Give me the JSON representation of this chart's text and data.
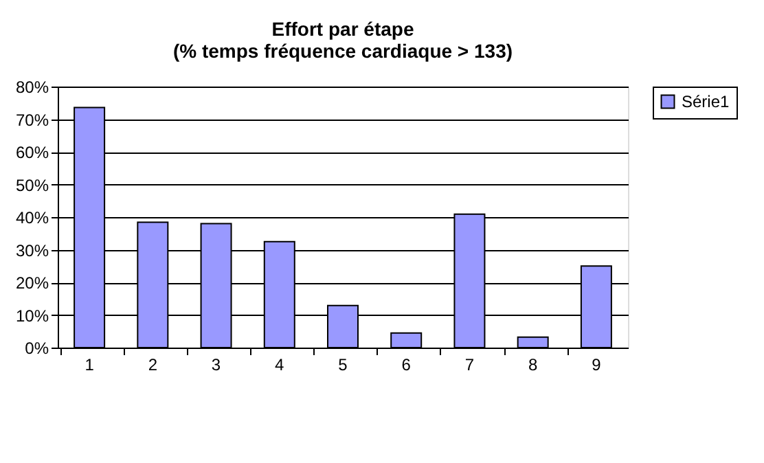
{
  "chart_data": {
    "type": "bar",
    "title": "Effort par étape\n(% temps fréquence cardiaque > 133)",
    "categories": [
      "1",
      "2",
      "3",
      "4",
      "5",
      "6",
      "7",
      "8",
      "9"
    ],
    "series": [
      {
        "name": "Série1",
        "color": "#9999ff",
        "values": [
          0.736,
          0.384,
          0.38,
          0.325,
          0.129,
          0.045,
          0.409,
          0.032,
          0.25
        ]
      }
    ],
    "ylim": [
      0,
      0.8
    ],
    "yticks": [
      {
        "value": 0,
        "label": "0%"
      },
      {
        "value": 0.1,
        "label": "10%"
      },
      {
        "value": 0.2,
        "label": "20%"
      },
      {
        "value": 0.3,
        "label": "30%"
      },
      {
        "value": 0.4,
        "label": "40%"
      },
      {
        "value": 0.5,
        "label": "50%"
      },
      {
        "value": 0.6,
        "label": "60%"
      },
      {
        "value": 0.7,
        "label": "70%"
      },
      {
        "value": 0.8,
        "label": "80%"
      }
    ],
    "grid": "y",
    "legend": "right"
  }
}
